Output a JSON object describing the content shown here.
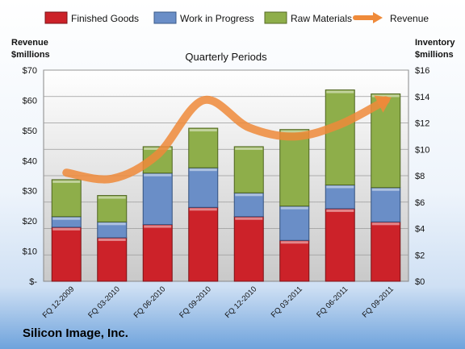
{
  "company": "Silicon Image, Inc.",
  "chart_data": {
    "type": "bar",
    "stacked": true,
    "subtitle": "Quarterly Periods",
    "ylabel_left": [
      "Revenue",
      "$millions"
    ],
    "ylabel_right": [
      "Inventory",
      "$millions"
    ],
    "categories": [
      "FQ 12-2009",
      "FQ 03-2010",
      "FQ 06-2010",
      "FQ 09-2010",
      "FQ 12-2010",
      "FQ 03-2011",
      "FQ 06-2011",
      "FQ 09-2011"
    ],
    "y_left_ticks": [
      "$-",
      "$10",
      "$20",
      "$30",
      "$40",
      "$50",
      "$60",
      "$70"
    ],
    "y_right_ticks": [
      "$0",
      "$2",
      "$4",
      "$6",
      "$8",
      "$10",
      "$12",
      "$14",
      "$16"
    ],
    "ylim_left": [
      0,
      70
    ],
    "ylim_right": [
      0,
      16
    ],
    "legend_position": "top",
    "series": [
      {
        "name": "Finished Goods",
        "color": "#cc2229",
        "axis": "right",
        "values": [
          4.1,
          3.3,
          4.3,
          5.6,
          4.9,
          3.1,
          5.5,
          4.5
        ]
      },
      {
        "name": "Work in Progress",
        "color": "#6a8ec7",
        "axis": "right",
        "values": [
          0.8,
          1.2,
          3.9,
          3.0,
          1.8,
          2.6,
          1.8,
          2.6
        ]
      },
      {
        "name": "Raw Materials",
        "color": "#8eae4a",
        "axis": "right",
        "values": [
          2.8,
          2.0,
          2.0,
          3.0,
          3.5,
          5.8,
          7.2,
          7.1
        ]
      }
    ],
    "line_series": {
      "name": "Revenue",
      "color": "#ef8a3a",
      "axis": "left",
      "values": [
        36,
        34,
        42,
        60,
        51,
        48,
        52,
        60
      ]
    },
    "grid": true
  }
}
